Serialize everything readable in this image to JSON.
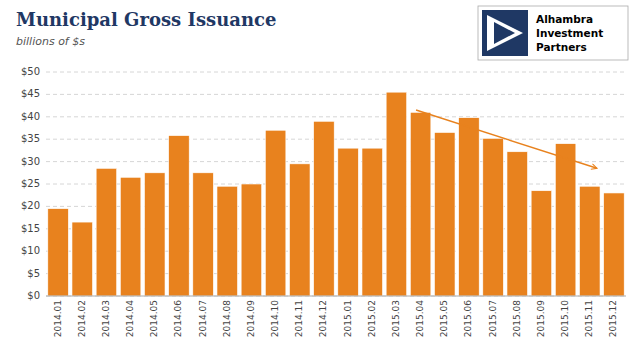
{
  "chart_data": {
    "type": "bar",
    "title": "Municipal Gross Issuance",
    "subtitle": "billions of $s",
    "annotations": [
      "Alhambra",
      "Investment",
      "Partners"
    ],
    "categories": [
      "2014.01",
      "2014.02",
      "2014.03",
      "2014.04",
      "2014.05",
      "2014.06",
      "2014.07",
      "2014.08",
      "2014.09",
      "2014.10",
      "2014.11",
      "2014.12",
      "2015.01",
      "2015.02",
      "2015.03",
      "2015.04",
      "2015.05",
      "2015.06",
      "2015.07",
      "2015.08",
      "2015.09",
      "2015.10",
      "2015.11",
      "2015.12"
    ],
    "values": [
      19.5,
      16.5,
      28.5,
      26.5,
      27.5,
      35.8,
      27.5,
      24.5,
      25.0,
      37.0,
      29.5,
      39.0,
      33.0,
      33.0,
      45.5,
      41.0,
      36.5,
      39.8,
      35.2,
      32.2,
      23.5,
      34.0,
      24.5,
      23.0
    ],
    "color": "#E8821E",
    "ylim": [
      0,
      50
    ],
    "yticks": [
      {
        "value": 0,
        "label": "$0"
      },
      {
        "value": 5,
        "label": "$5"
      },
      {
        "value": 10,
        "label": "$10"
      },
      {
        "value": 15,
        "label": "$15"
      },
      {
        "value": 20,
        "label": "$20"
      },
      {
        "value": 25,
        "label": "$25"
      },
      {
        "value": 30,
        "label": "$30"
      },
      {
        "value": 35,
        "label": "$35"
      },
      {
        "value": 40,
        "label": "$40"
      },
      {
        "value": 45,
        "label": "$45"
      },
      {
        "value": 50,
        "label": "$50"
      }
    ],
    "grid": true
  }
}
